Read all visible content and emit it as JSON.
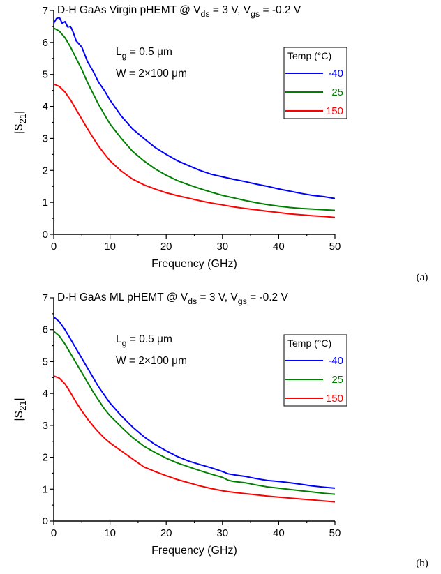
{
  "chart_data": [
    {
      "type": "line",
      "panel": "(a)",
      "title_parts": [
        "D-H GaAs Virgin pHEMT @ V",
        "ds",
        " = 3 V, V",
        "gs",
        " = -0.2 V"
      ],
      "annotation_lg": [
        "L",
        "g",
        " = 0.5 μm"
      ],
      "annotation_w": "W = 2×100 μm",
      "xlabel": "Frequency (GHz)",
      "ylabel_parts": [
        "|S",
        "21",
        "|"
      ],
      "xlim": [
        0,
        50
      ],
      "ylim": [
        0,
        7
      ],
      "xticks": [
        "0",
        "10",
        "20",
        "30",
        "40",
        "50"
      ],
      "yticks": [
        "0",
        "1",
        "2",
        "3",
        "4",
        "5",
        "6",
        "7"
      ],
      "legend_title": "Temp (°C)",
      "series": [
        {
          "name": "-40",
          "color": "#0000ff",
          "x": [
            0,
            0.5,
            1,
            1.5,
            2,
            2.5,
            3,
            3.5,
            4,
            5,
            6,
            7,
            8,
            9,
            10,
            12,
            14,
            16,
            18,
            20,
            22,
            24,
            26,
            28,
            30,
            32,
            34,
            36,
            38,
            40,
            42,
            44,
            46,
            48,
            50
          ],
          "y": [
            6.6,
            6.75,
            6.78,
            6.6,
            6.65,
            6.48,
            6.5,
            6.3,
            6.05,
            5.85,
            5.4,
            5.1,
            4.75,
            4.5,
            4.2,
            3.7,
            3.3,
            3.0,
            2.72,
            2.5,
            2.3,
            2.15,
            2.0,
            1.88,
            1.8,
            1.72,
            1.65,
            1.57,
            1.5,
            1.42,
            1.35,
            1.28,
            1.22,
            1.18,
            1.12
          ]
        },
        {
          "name": "25",
          "color": "#008000",
          "x": [
            0,
            1,
            2,
            3,
            4,
            5,
            6,
            7,
            8,
            9,
            10,
            12,
            14,
            16,
            18,
            20,
            22,
            24,
            26,
            28,
            30,
            32,
            34,
            36,
            38,
            40,
            42,
            44,
            46,
            48,
            50
          ],
          "y": [
            6.45,
            6.35,
            6.15,
            5.85,
            5.5,
            5.15,
            4.75,
            4.4,
            4.05,
            3.75,
            3.45,
            3.0,
            2.6,
            2.3,
            2.05,
            1.85,
            1.68,
            1.55,
            1.43,
            1.32,
            1.22,
            1.14,
            1.06,
            0.99,
            0.93,
            0.88,
            0.84,
            0.81,
            0.79,
            0.77,
            0.75
          ]
        },
        {
          "name": "150",
          "color": "#ff0000",
          "x": [
            0,
            1,
            2,
            3,
            4,
            5,
            6,
            7,
            8,
            9,
            10,
            12,
            14,
            16,
            18,
            20,
            22,
            24,
            26,
            28,
            30,
            32,
            34,
            36,
            38,
            40,
            42,
            44,
            46,
            48,
            50
          ],
          "y": [
            4.7,
            4.62,
            4.45,
            4.2,
            3.9,
            3.6,
            3.3,
            3.02,
            2.75,
            2.52,
            2.3,
            1.98,
            1.73,
            1.55,
            1.42,
            1.3,
            1.21,
            1.13,
            1.05,
            0.98,
            0.92,
            0.86,
            0.81,
            0.77,
            0.72,
            0.68,
            0.64,
            0.61,
            0.58,
            0.56,
            0.53
          ]
        }
      ]
    },
    {
      "type": "line",
      "panel": "(b)",
      "title_parts": [
        "D-H GaAs ML pHEMT @ V",
        "ds",
        " = 3 V, V",
        "gs",
        " = -0.2 V"
      ],
      "annotation_lg": [
        "L",
        "g",
        " = 0.5 μm"
      ],
      "annotation_w": "W = 2×100 μm",
      "xlabel": "Frequency (GHz)",
      "ylabel_parts": [
        "|S",
        "21",
        "|"
      ],
      "xlim": [
        0,
        50
      ],
      "ylim": [
        0,
        7
      ],
      "xticks": [
        "0",
        "10",
        "20",
        "30",
        "40",
        "50"
      ],
      "yticks": [
        "0",
        "1",
        "2",
        "3",
        "4",
        "5",
        "6",
        "7"
      ],
      "legend_title": "Temp (°C)",
      "series": [
        {
          "name": "-40",
          "color": "#0000ff",
          "x": [
            0,
            1,
            2,
            3,
            4,
            5,
            6,
            7,
            8,
            9,
            10,
            12,
            14,
            16,
            18,
            20,
            22,
            24,
            26,
            28,
            30,
            31,
            32,
            34,
            36,
            38,
            40,
            42,
            44,
            46,
            48,
            50
          ],
          "y": [
            6.4,
            6.25,
            6.0,
            5.7,
            5.4,
            5.1,
            4.8,
            4.5,
            4.2,
            3.95,
            3.7,
            3.3,
            2.95,
            2.65,
            2.4,
            2.2,
            2.02,
            1.88,
            1.77,
            1.67,
            1.55,
            1.48,
            1.45,
            1.4,
            1.33,
            1.27,
            1.24,
            1.2,
            1.15,
            1.1,
            1.06,
            1.03
          ]
        },
        {
          "name": "25",
          "color": "#008000",
          "x": [
            0,
            1,
            2,
            3,
            4,
            5,
            6,
            7,
            8,
            9,
            10,
            12,
            14,
            16,
            18,
            20,
            22,
            24,
            26,
            28,
            30,
            31,
            32,
            34,
            36,
            38,
            40,
            42,
            44,
            46,
            48,
            50
          ],
          "y": [
            5.95,
            5.8,
            5.55,
            5.25,
            4.95,
            4.65,
            4.35,
            4.05,
            3.78,
            3.52,
            3.3,
            2.95,
            2.62,
            2.35,
            2.15,
            1.97,
            1.82,
            1.7,
            1.58,
            1.47,
            1.37,
            1.28,
            1.24,
            1.2,
            1.13,
            1.07,
            1.03,
            0.99,
            0.95,
            0.91,
            0.87,
            0.84
          ]
        },
        {
          "name": "150",
          "color": "#ff0000",
          "x": [
            0,
            1,
            2,
            3,
            4,
            5,
            6,
            7,
            8,
            9,
            10,
            12,
            14,
            16,
            18,
            20,
            22,
            24,
            26,
            28,
            30,
            31,
            32,
            34,
            36,
            38,
            40,
            42,
            44,
            46,
            48,
            50
          ],
          "y": [
            4.55,
            4.48,
            4.3,
            4.02,
            3.72,
            3.45,
            3.2,
            2.98,
            2.78,
            2.6,
            2.45,
            2.2,
            1.95,
            1.7,
            1.55,
            1.42,
            1.3,
            1.2,
            1.1,
            1.02,
            0.95,
            0.92,
            0.9,
            0.86,
            0.82,
            0.78,
            0.75,
            0.72,
            0.69,
            0.66,
            0.63,
            0.6
          ]
        }
      ]
    }
  ]
}
